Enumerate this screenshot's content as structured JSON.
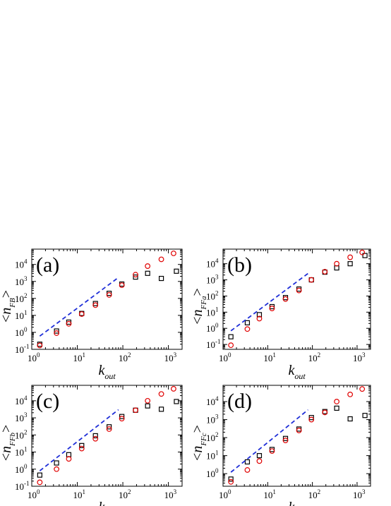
{
  "chart_data": [
    {
      "type": "scatter",
      "panel_label": "(a)",
      "xlabel": "k_out",
      "ylabel": "<n_FB>",
      "x_scale": "log",
      "y_scale": "log",
      "xlim": [
        1,
        2000
      ],
      "ylim": [
        0.1,
        80000
      ],
      "series": [
        {
          "marker": "square",
          "color": "#000000",
          "x": [
            1.5,
            3.5,
            6.5,
            12.5,
            25,
            50,
            95,
            190,
            350,
            700,
            1500
          ],
          "y": [
            0.2,
            1.2,
            4,
            13,
            50,
            200,
            700,
            1800,
            3000,
            1500,
            4000
          ]
        },
        {
          "marker": "circle",
          "color": "#e00000",
          "x": [
            1.5,
            3.5,
            6.5,
            12.5,
            25,
            50,
            95,
            190,
            350,
            700,
            1300
          ],
          "y": [
            0.17,
            0.9,
            3.2,
            12,
            40,
            160,
            600,
            2500,
            8000,
            20000,
            45000
          ]
        },
        {
          "marker": "dashed-line",
          "color": "#1f2fd8",
          "x": [
            1.5,
            80
          ],
          "y": [
            0.6,
            1700
          ]
        }
      ]
    },
    {
      "type": "scatter",
      "panel_label": "(b)",
      "xlabel": "k_out",
      "ylabel": "<n_FFa>",
      "x_scale": "log",
      "y_scale": "log",
      "xlim": [
        1,
        2000
      ],
      "ylim": [
        0.05,
        80000
      ],
      "series": [
        {
          "marker": "square",
          "color": "#000000",
          "x": [
            1.5,
            3.5,
            6.5,
            12.5,
            25,
            50,
            95,
            190,
            350,
            700,
            1500
          ],
          "y": [
            0.3,
            2.2,
            7,
            22,
            80,
            270,
            1000,
            3000,
            5500,
            10000,
            32000
          ]
        },
        {
          "marker": "circle",
          "color": "#e00000",
          "x": [
            1.5,
            3.5,
            6.5,
            12.5,
            25,
            50,
            95,
            190,
            350,
            700,
            1300
          ],
          "y": [
            0.09,
            0.9,
            4,
            17,
            65,
            220,
            1000,
            3200,
            10000,
            25000,
            50000
          ]
        },
        {
          "marker": "dashed-line",
          "color": "#1f2fd8",
          "x": [
            1.5,
            80
          ],
          "y": [
            0.7,
            2500
          ]
        }
      ]
    },
    {
      "type": "scatter",
      "panel_label": "(c)",
      "xlabel": "k_out",
      "ylabel": "<n_FFb>",
      "x_scale": "log",
      "y_scale": "log",
      "xlim": [
        1,
        2000
      ],
      "ylim": [
        0.1,
        80000
      ],
      "series": [
        {
          "marker": "square",
          "color": "#000000",
          "x": [
            1.5,
            3.5,
            6.5,
            12.5,
            25,
            50,
            95,
            190,
            350,
            700,
            1500
          ],
          "y": [
            0.45,
            2.3,
            7,
            24,
            90,
            300,
            1200,
            2800,
            5000,
            3200,
            9000
          ]
        },
        {
          "marker": "circle",
          "color": "#e00000",
          "x": [
            1.5,
            3.5,
            6.5,
            12.5,
            25,
            50,
            95,
            190,
            350,
            700,
            1300
          ],
          "y": [
            0.17,
            1,
            4,
            16,
            60,
            220,
            900,
            2800,
            10000,
            25000,
            50000
          ]
        },
        {
          "marker": "dashed-line",
          "color": "#1f2fd8",
          "x": [
            1.5,
            80
          ],
          "y": [
            0.8,
            3000
          ]
        }
      ]
    },
    {
      "type": "scatter",
      "panel_label": "(d)",
      "xlabel": "k_out",
      "ylabel": "<n_FFc>",
      "x_scale": "log",
      "y_scale": "log",
      "xlim": [
        1,
        2000
      ],
      "ylim": [
        0.2,
        80000
      ],
      "series": [
        {
          "marker": "square",
          "color": "#000000",
          "x": [
            1.5,
            3.5,
            6.5,
            12.5,
            25,
            50,
            95,
            190,
            350,
            700,
            1500
          ],
          "y": [
            0.5,
            4.5,
            10,
            22,
            90,
            300,
            1300,
            2800,
            4300,
            1100,
            1700
          ]
        },
        {
          "marker": "circle",
          "color": "#e00000",
          "x": [
            1.5,
            3.5,
            6.5,
            12.5,
            25,
            50,
            95,
            190,
            350,
            700,
            1300
          ],
          "y": [
            0.35,
            1.6,
            5,
            18,
            70,
            250,
            1000,
            2500,
            10000,
            25000,
            50000
          ]
        },
        {
          "marker": "dashed-line",
          "color": "#1f2fd8",
          "x": [
            1.5,
            80
          ],
          "y": [
            1.2,
            3500
          ]
        }
      ]
    }
  ]
}
